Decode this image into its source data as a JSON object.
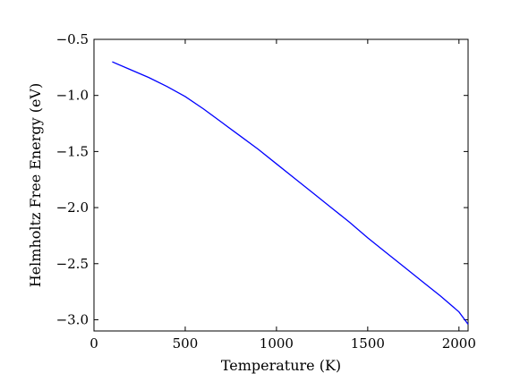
{
  "chart_data": {
    "type": "line",
    "title": "",
    "xlabel": "Temperature (K)",
    "ylabel": "Helmholtz Free Energy (eV)",
    "xlim": [
      0,
      2050
    ],
    "ylim": [
      -3.1,
      -0.5
    ],
    "xticks": [
      0,
      500,
      1000,
      1500,
      2000
    ],
    "xtick_labels": [
      "0",
      "500",
      "1000",
      "1500",
      "2000"
    ],
    "yticks": [
      -0.5,
      -1.0,
      -1.5,
      -2.0,
      -2.5,
      -3.0
    ],
    "ytick_labels": [
      "−0.5",
      "−1.0",
      "−1.5",
      "−2.0",
      "−2.5",
      "−3.0"
    ],
    "grid": false,
    "colors": {
      "line": "#0000ff",
      "axes": "#000000"
    },
    "series": [
      {
        "x": [
          100,
          200,
          300,
          400,
          500,
          600,
          700,
          800,
          900,
          1000,
          1100,
          1200,
          1300,
          1400,
          1500,
          1600,
          1700,
          1800,
          1900,
          2000,
          2050
        ],
        "values": [
          -0.7,
          -0.77,
          -0.84,
          -0.92,
          -1.01,
          -1.12,
          -1.24,
          -1.36,
          -1.48,
          -1.61,
          -1.74,
          -1.87,
          -2.0,
          -2.13,
          -2.27,
          -2.4,
          -2.53,
          -2.66,
          -2.79,
          -2.93,
          -3.04
        ]
      }
    ]
  }
}
